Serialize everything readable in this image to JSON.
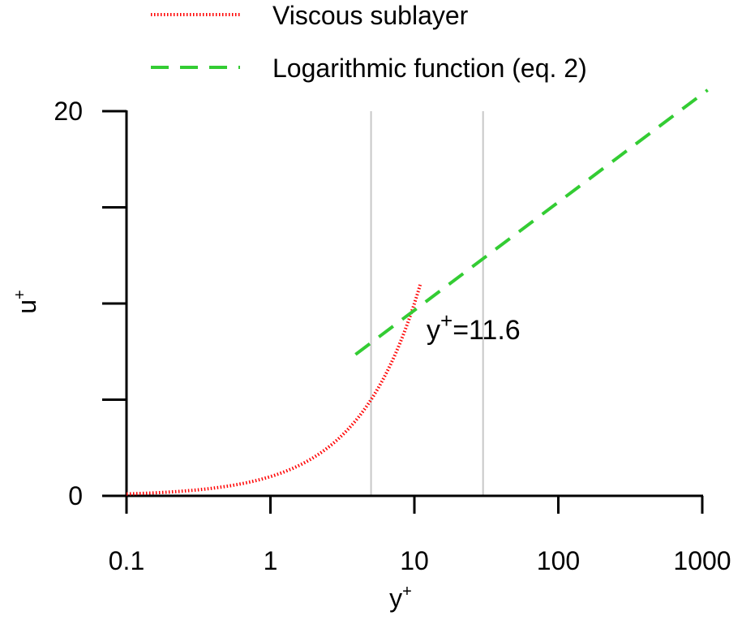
{
  "chart_data": {
    "type": "line",
    "title": "",
    "xlabel": "y",
    "xlabel_sup": "+",
    "ylabel": "u",
    "ylabel_sup": "+",
    "x_scale": "log",
    "xlim": [
      0.1,
      1000
    ],
    "ylim": [
      0,
      20
    ],
    "x_ticks": [
      0.1,
      1,
      10,
      100,
      1000
    ],
    "x_tick_labels": [
      "0.1",
      "1",
      "10",
      "100",
      "1000"
    ],
    "y_ticks": [
      0,
      5,
      10,
      15,
      20
    ],
    "y_tick_labels": [
      "0",
      "",
      "",
      "",
      "20"
    ],
    "legend_position": "top",
    "series": [
      {
        "name": "Viscous sublayer",
        "style": "dotted",
        "color": "#ff0000",
        "x": [
          0.1,
          0.2,
          0.5,
          1,
          2,
          3,
          4,
          5,
          6,
          7,
          8,
          9,
          10,
          11
        ],
        "y": [
          0.1,
          0.2,
          0.5,
          1,
          2,
          3,
          4,
          5,
          6,
          7,
          8,
          9,
          10,
          11
        ]
      },
      {
        "name": "Logarithmic function (eq. 2)",
        "style": "dashed",
        "color": "#33cc33",
        "x": [
          3.9,
          1090
        ],
        "y": [
          7.35,
          21.1
        ]
      }
    ],
    "reference_lines_x": [
      5,
      30
    ],
    "annotation": {
      "base": "y",
      "sup": "+",
      "rest": "=11.6",
      "x": 11.6,
      "y": 8.6
    }
  }
}
